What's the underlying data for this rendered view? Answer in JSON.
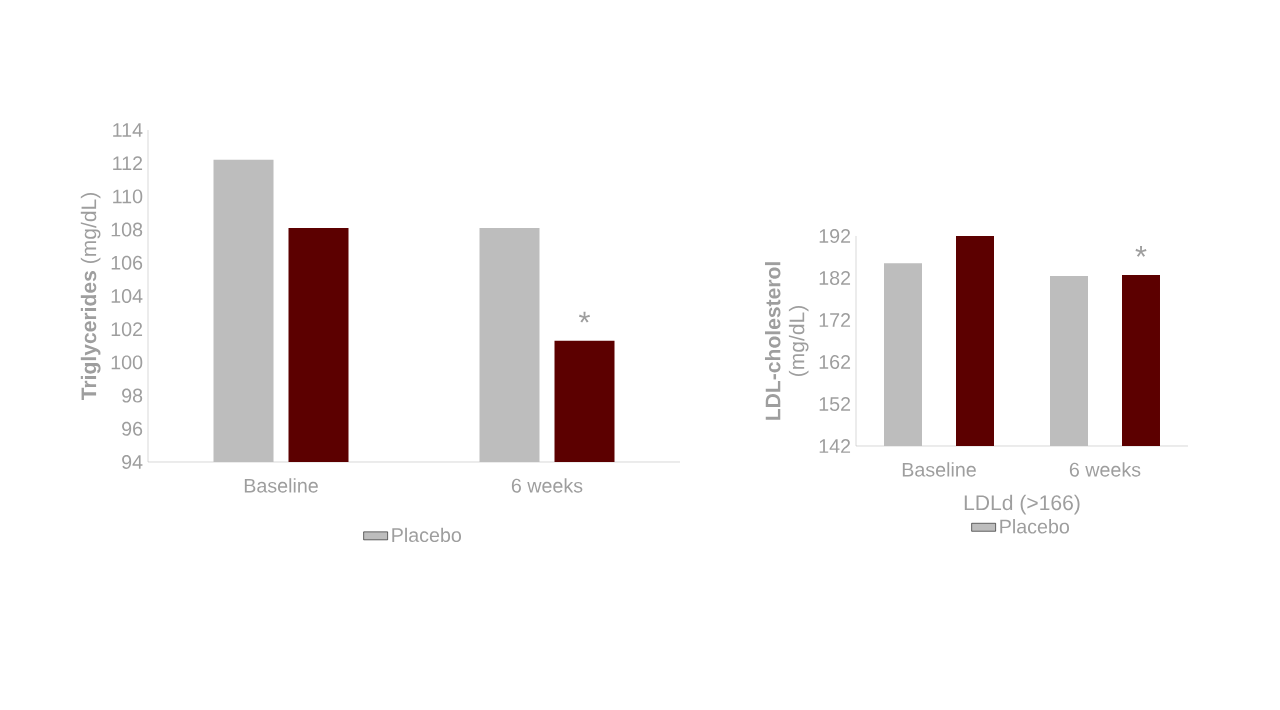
{
  "chart_data": [
    {
      "type": "bar",
      "ylabel": "**Triglycerides** (mg/dL)",
      "categories": [
        "Baseline",
        "6 weeks"
      ],
      "series": [
        {
          "name": "Placebo",
          "color": "#bdbdbd",
          "values": [
            112.2,
            108.1
          ]
        },
        {
          "color": "#5c0000",
          "values": [
            108.1,
            101.3
          ]
        }
      ],
      "ylim": [
        94,
        114
      ],
      "yticks": [
        94,
        96,
        98,
        100,
        102,
        104,
        106,
        108,
        110,
        112,
        114
      ],
      "legend": "bottom",
      "annotations": [
        "*"
      ]
    },
    {
      "type": "bar",
      "ylabel": "**LDL-cholesterol** (mg/dL)",
      "xlabel": "LDLd (>166)",
      "categories": [
        "Baseline",
        "6 weeks"
      ],
      "series": [
        {
          "name": "Placebo",
          "color": "#bdbdbd",
          "values": [
            185.5,
            182.5
          ]
        },
        {
          "color": "#5c0000",
          "values": [
            192,
            182.7
          ]
        }
      ],
      "ylim": [
        142,
        192
      ],
      "yticks": [
        142,
        152,
        162,
        172,
        182,
        192
      ],
      "legend": "bottom",
      "annotations": [
        "*"
      ]
    }
  ]
}
